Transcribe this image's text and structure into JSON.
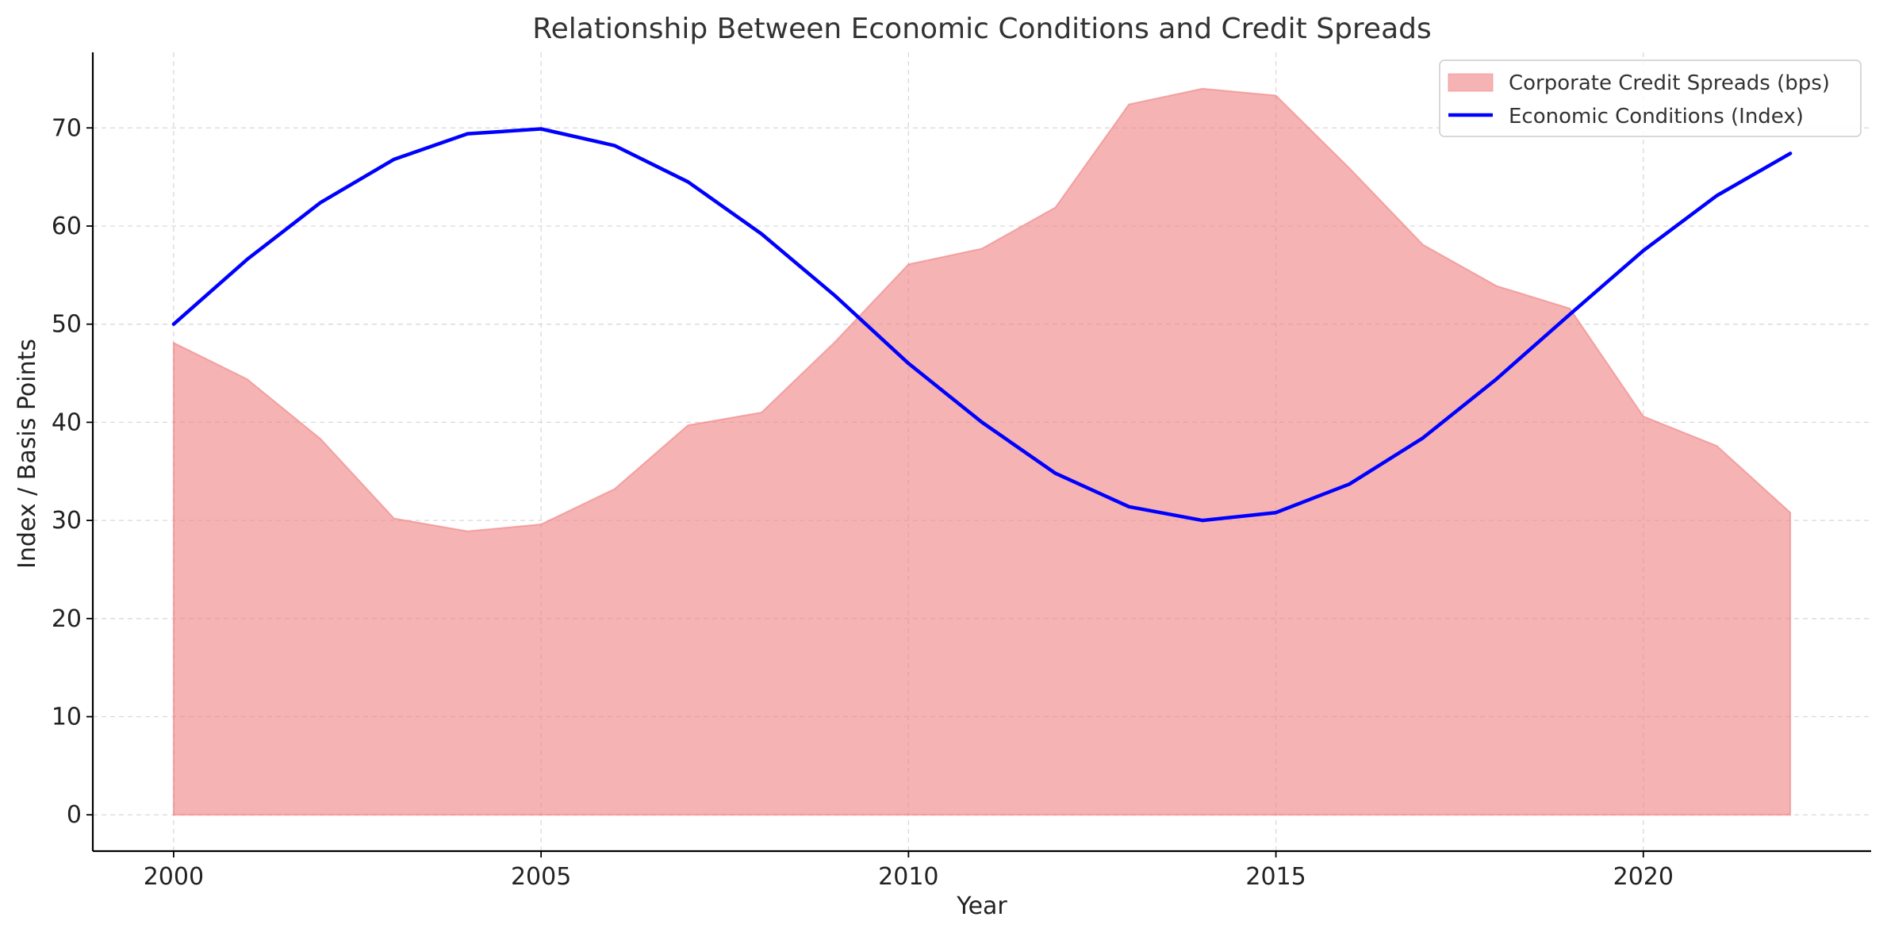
{
  "chart_data": {
    "type": "area",
    "title": "Relationship Between Economic Conditions and Credit Spreads",
    "xlabel": "Year",
    "ylabel": "Index / Basis Points",
    "xlim": [
      1998.9,
      2023.1
    ],
    "ylim": [
      -3.7,
      77.7
    ],
    "x_ticks": [
      2000,
      2005,
      2010,
      2015,
      2020
    ],
    "y_ticks": [
      0,
      10,
      20,
      30,
      40,
      50,
      60,
      70
    ],
    "grid": true,
    "legend_position": "top-right",
    "x": [
      2000,
      2001,
      2002,
      2003,
      2004,
      2005,
      2006,
      2007,
      2008,
      2009,
      2010,
      2011,
      2012,
      2013,
      2014,
      2015,
      2016,
      2017,
      2018,
      2019,
      2020,
      2021,
      2022
    ],
    "series": [
      {
        "name": "Corporate Credit Spreads (bps)",
        "kind": "area",
        "color": "#f08080",
        "values": [
          48.1,
          44.4,
          38.3,
          30.2,
          28.9,
          29.6,
          33.2,
          39.7,
          41.0,
          48.2,
          56.1,
          57.7,
          61.9,
          72.4,
          74.0,
          73.3,
          65.9,
          58.1,
          53.9,
          51.6,
          40.6,
          37.6,
          30.8
        ]
      },
      {
        "name": "Economic Conditions (Index)",
        "kind": "line",
        "color": "#0000ff",
        "values": [
          50.0,
          56.6,
          62.4,
          66.8,
          69.4,
          69.9,
          68.2,
          64.5,
          59.2,
          52.9,
          46.0,
          40.0,
          34.8,
          31.4,
          30.0,
          30.8,
          33.7,
          38.4,
          44.4,
          51.0,
          57.5,
          63.1,
          67.4
        ]
      }
    ]
  }
}
